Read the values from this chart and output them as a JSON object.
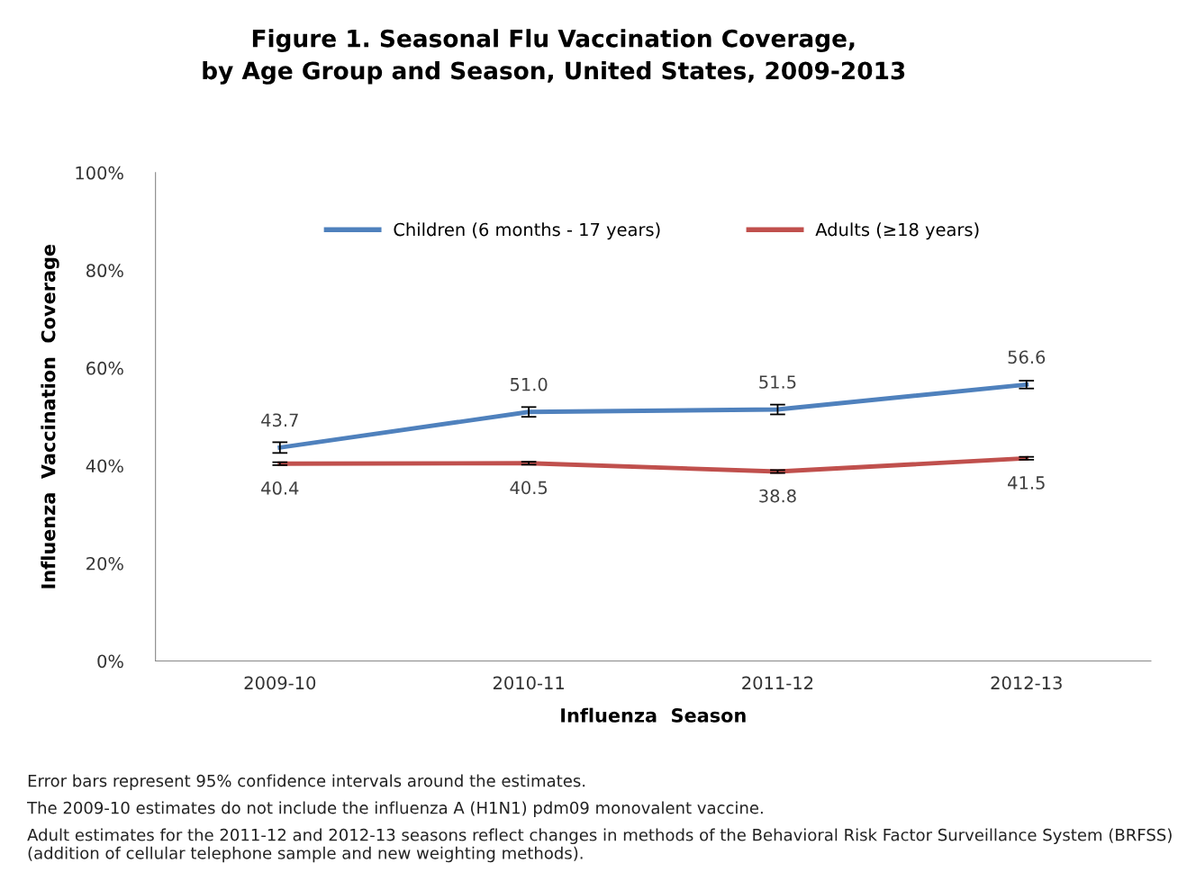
{
  "chart_data": {
    "type": "line",
    "title": "Figure 1. Seasonal Flu Vaccination Coverage,\nby Age Group and Season, United States, 2009-2013",
    "xlabel": "Influenza  Season",
    "ylabel": "Influenza  Vaccination  Coverage",
    "categories": [
      "2009-10",
      "2010-11",
      "2011-12",
      "2012-13"
    ],
    "series": [
      {
        "name": "Children (6 months - 17 years)",
        "color": "#4f81bd",
        "values": [
          43.7,
          51.0,
          51.5,
          56.6
        ],
        "errors": [
          1.1,
          1.0,
          1.0,
          0.8
        ],
        "value_labels": [
          "43.7",
          "51.0",
          "51.5",
          "56.6"
        ]
      },
      {
        "name": "Adults (≥18 years)",
        "color": "#c0504d",
        "values": [
          40.4,
          40.5,
          38.8,
          41.5
        ],
        "errors": [
          0.3,
          0.3,
          0.3,
          0.3
        ],
        "value_labels": [
          "40.4",
          "40.5",
          "38.8",
          "41.5"
        ]
      }
    ],
    "ylim": [
      0,
      100
    ],
    "yticks": [
      {
        "value": 0,
        "label": "0%"
      },
      {
        "value": 20,
        "label": "20%"
      },
      {
        "value": 40,
        "label": "40%"
      },
      {
        "value": 60,
        "label": "60%"
      },
      {
        "value": 80,
        "label": "80%"
      },
      {
        "value": 100,
        "label": "100%"
      }
    ],
    "grid": false,
    "legend": "top",
    "marker": "none",
    "line_style": "solid",
    "annotations": [
      "Error bars represent 95% confidence intervals around the estimates.",
      "The 2009-10 estimates do not include the influenza A (H1N1) pdm09 monovalent vaccine.",
      "Adult estimates for the 2011-12 and 2012-13 seasons reflect changes in methods of the Behavioral Risk Factor Surveillance System (BRFSS) (addition of cellular telephone sample and new weighting methods)."
    ]
  }
}
